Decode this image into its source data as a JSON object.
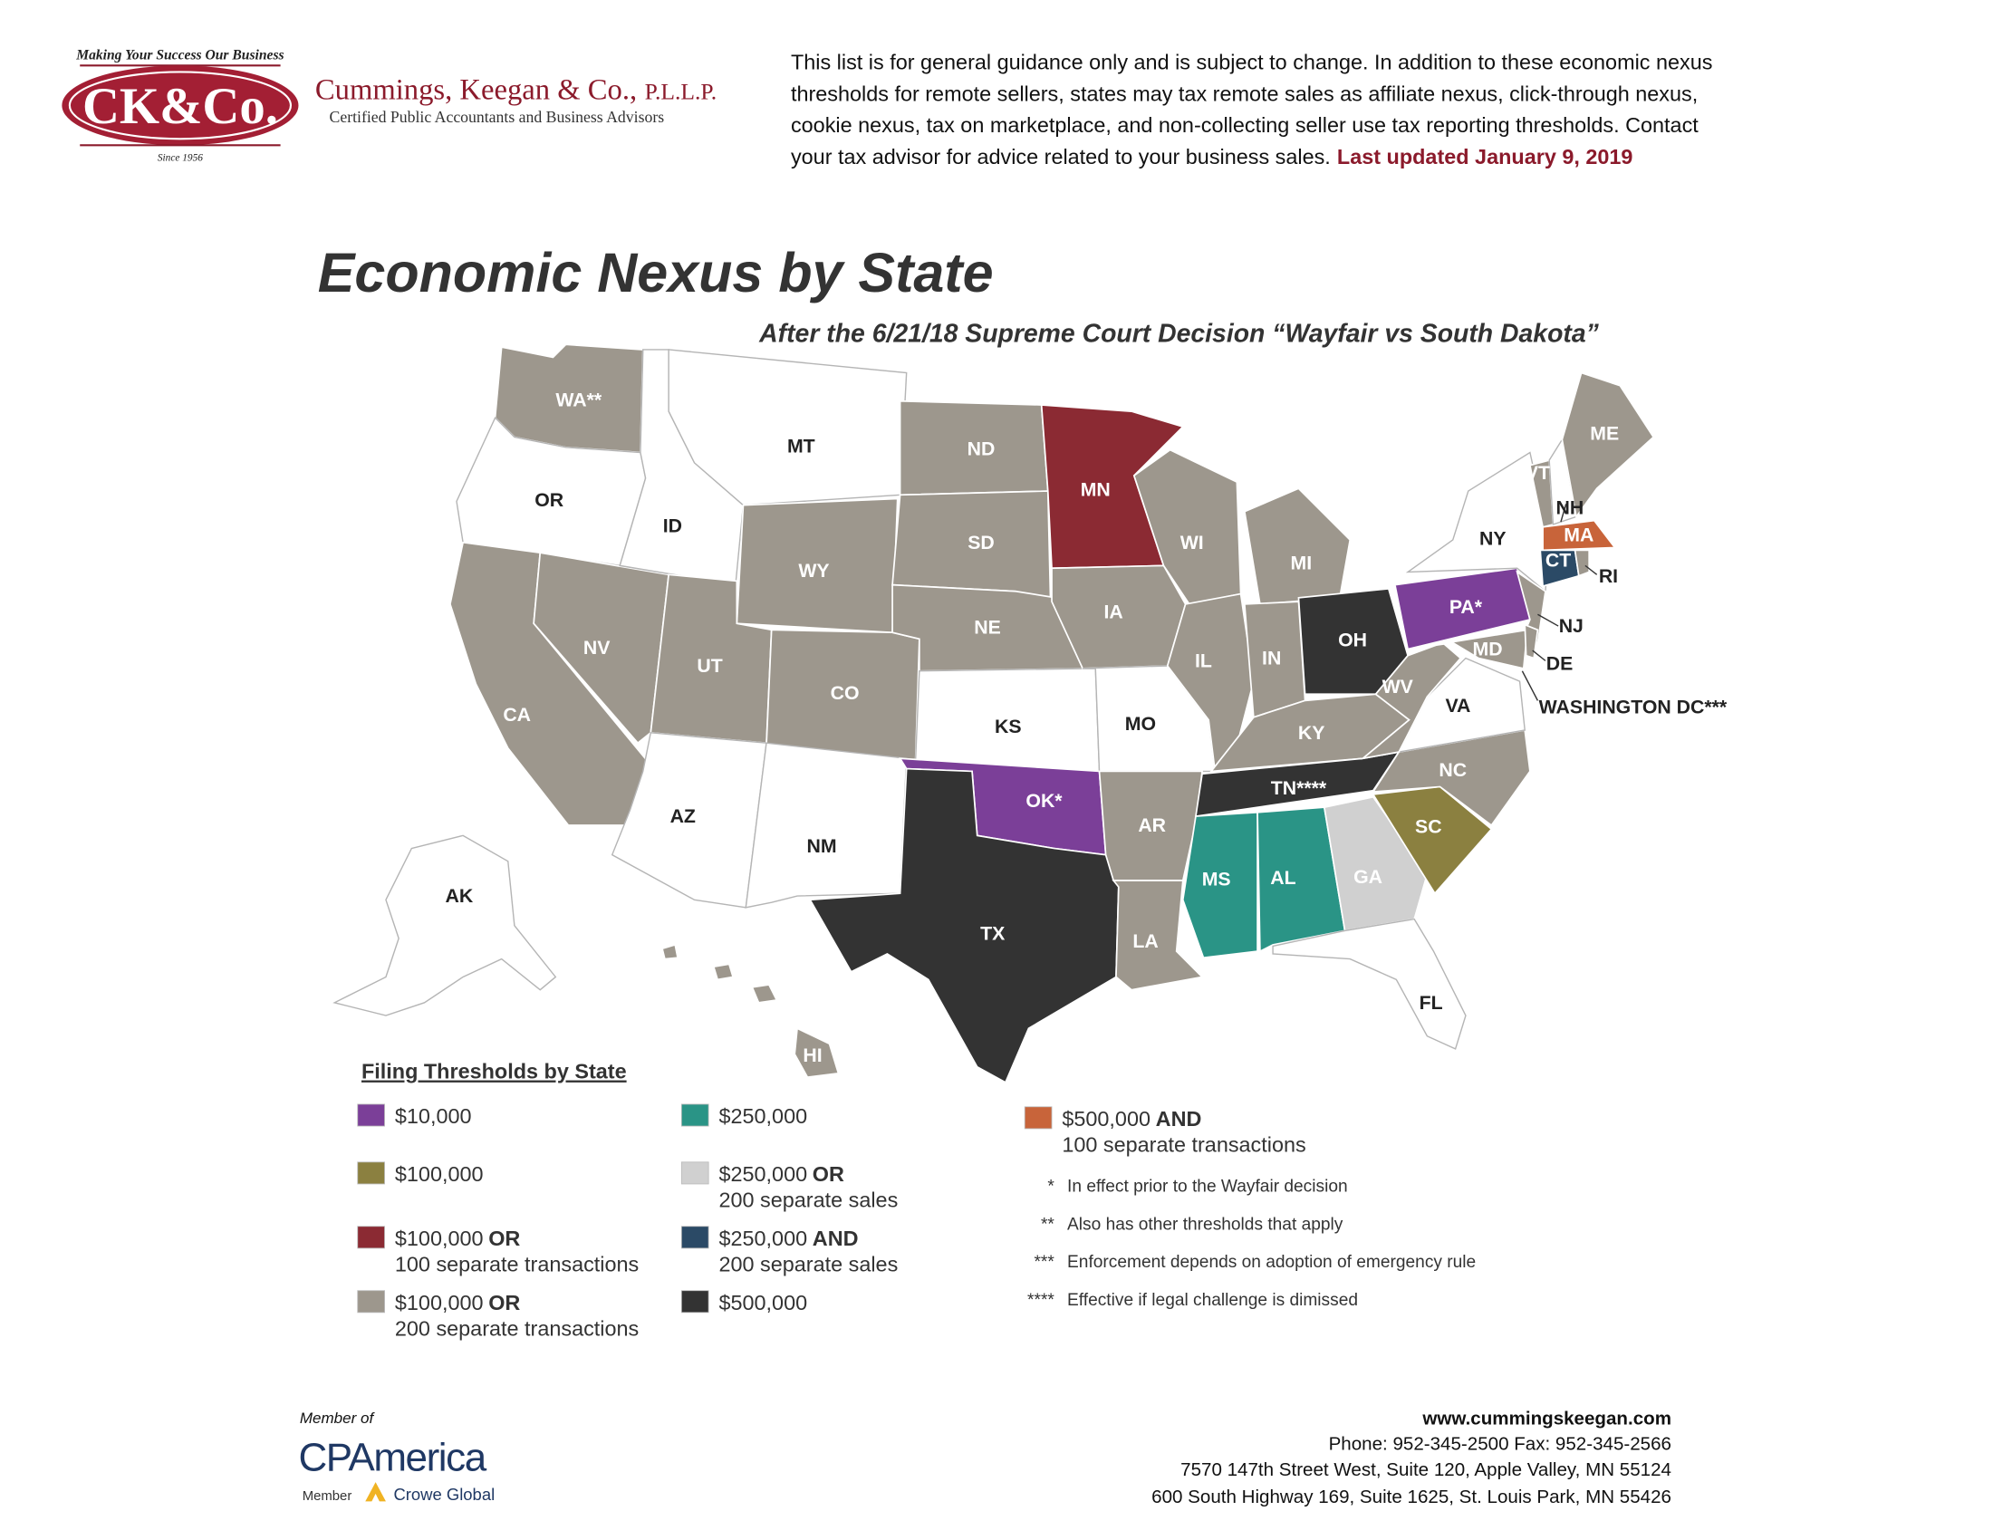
{
  "logo": {
    "tagline": "Making Your Success Our Business",
    "mark": "CK&Co.",
    "since": "Since 1956",
    "firm": "Cummings, Keegan & Co.,",
    "firm_suffix": "P.L.L.P.",
    "services": "Certified Public Accountants and Business Advisors"
  },
  "disclaimer": {
    "lines": [
      "This list is for general guidance only and is subject to change. In addition to these economic nexus",
      "thresholds for remote sellers, states may tax remote sales as affiliate nexus, click-through nexus,",
      "cookie nexus, tax on marketplace, and non-collecting seller use tax reporting thresholds. Contact",
      "your tax advisor for advice related to your business sales."
    ],
    "updated": "Last updated January 9, 2019"
  },
  "title": "Economic Nexus by State",
  "subtitle": "After the 6/21/18 Supreme Court Decision “Wayfair vs South Dakota”",
  "states": [
    {
      "label": "WA**",
      "color": "#9d978d"
    },
    {
      "label": "OR",
      "color": "#ffffff"
    },
    {
      "label": "CA",
      "color": "#9d978d"
    },
    {
      "label": "NV",
      "color": "#9d978d"
    },
    {
      "label": "ID",
      "color": "#ffffff"
    },
    {
      "label": "MT",
      "color": "#ffffff"
    },
    {
      "label": "WY",
      "color": "#9d978d"
    },
    {
      "label": "UT",
      "color": "#9d978d"
    },
    {
      "label": "CO",
      "color": "#9d978d"
    },
    {
      "label": "AZ",
      "color": "#ffffff"
    },
    {
      "label": "NM",
      "color": "#ffffff"
    },
    {
      "label": "ND",
      "color": "#9d978d"
    },
    {
      "label": "SD",
      "color": "#9d978d"
    },
    {
      "label": "NE",
      "color": "#9d978d"
    },
    {
      "label": "KS",
      "color": "#ffffff"
    },
    {
      "label": "OK*",
      "color": "#7b3f98"
    },
    {
      "label": "TX",
      "color": "#333333"
    },
    {
      "label": "MN",
      "color": "#8b2a33"
    },
    {
      "label": "IA",
      "color": "#9d978d"
    },
    {
      "label": "MO",
      "color": "#ffffff"
    },
    {
      "label": "AR",
      "color": "#9d978d"
    },
    {
      "label": "LA",
      "color": "#9d978d"
    },
    {
      "label": "WI",
      "color": "#9d978d"
    },
    {
      "label": "IL",
      "color": "#9d978d"
    },
    {
      "label": "MI",
      "color": "#9d978d"
    },
    {
      "label": "IN",
      "color": "#9d978d"
    },
    {
      "label": "OH",
      "color": "#333333"
    },
    {
      "label": "KY",
      "color": "#9d978d"
    },
    {
      "label": "TN****",
      "color": "#333333"
    },
    {
      "label": "MS",
      "color": "#2a9486"
    },
    {
      "label": "AL",
      "color": "#2a9486"
    },
    {
      "label": "GA",
      "color": "#d0d0d0"
    },
    {
      "label": "FL",
      "color": "#ffffff"
    },
    {
      "label": "SC",
      "color": "#8b8040"
    },
    {
      "label": "NC",
      "color": "#9d978d"
    },
    {
      "label": "VA",
      "color": "#ffffff"
    },
    {
      "label": "WV",
      "color": "#9d978d"
    },
    {
      "label": "PA*",
      "color": "#7b3f98"
    },
    {
      "label": "NY",
      "color": "#ffffff"
    },
    {
      "label": "NJ",
      "color": "#9d978d"
    },
    {
      "label": "MD",
      "color": "#9d978d"
    },
    {
      "label": "DE",
      "color": "#9d978d"
    },
    {
      "label": "VT",
      "color": "#9d978d"
    },
    {
      "label": "NH",
      "color": "#ffffff"
    },
    {
      "label": "ME",
      "color": "#9d978d"
    },
    {
      "label": "MA",
      "color": "#c8643a"
    },
    {
      "label": "CT",
      "color": "#2b4a66"
    },
    {
      "label": "RI",
      "color": "#9d978d"
    },
    {
      "label": "AK",
      "color": "#ffffff"
    },
    {
      "label": "HI",
      "color": "#9d978d"
    },
    {
      "label": "WASHINGTON DC***"
    }
  ],
  "legend": {
    "title": "Filing Thresholds by State",
    "items": [
      {
        "color": "#7b3f98",
        "amount": "$10,000"
      },
      {
        "color": "#8b8040",
        "amount": "$100,000"
      },
      {
        "color": "#8b2a33",
        "amount": "$100,000",
        "connector": "OR",
        "detail": "100 separate transactions"
      },
      {
        "color": "#9d978d",
        "amount": "$100,000",
        "connector": "OR",
        "detail": "200 separate transactions"
      },
      {
        "color": "#2a9486",
        "amount": "$250,000"
      },
      {
        "color": "#d0d0d0",
        "amount": "$250,000",
        "connector": "OR",
        "detail": "200 separate sales"
      },
      {
        "color": "#2b4a66",
        "amount": "$250,000",
        "connector": "AND",
        "detail": "200 separate sales"
      },
      {
        "color": "#333333",
        "amount": "$500,000"
      },
      {
        "color": "#c8643a",
        "amount": "$500,000",
        "connector": "AND",
        "detail": "100 separate transactions"
      }
    ]
  },
  "footnotes": [
    {
      "marker": "*",
      "text": "In effect prior to the Wayfair decision"
    },
    {
      "marker": "**",
      "text": "Also has other thresholds that apply"
    },
    {
      "marker": "***",
      "text": "Enforcement depends on adoption of emergency rule"
    },
    {
      "marker": "****",
      "text": "Effective if legal challenge is dimissed"
    }
  ],
  "footer": {
    "member_of": "Member of",
    "network": "CPAmerica",
    "member": "Member",
    "global": "Crowe Global",
    "website": "www.cummingskeegan.com",
    "phone": "Phone: 952-345-2500  Fax: 952-345-2566",
    "addresses": [
      "7570 147th Street West, Suite 120, Apple Valley, MN 55124",
      "600 South Highway 169, Suite 1625, St. Louis Park, MN 55426"
    ]
  }
}
